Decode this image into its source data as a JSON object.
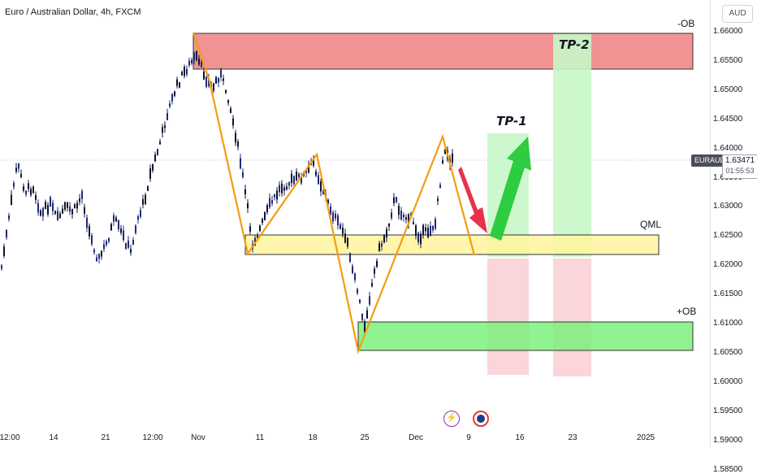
{
  "header": {
    "title": "Euro / Australian Dollar, 4h, FXCM",
    "currency": "AUD"
  },
  "price_axis": {
    "ticks": [
      "1.66000",
      "1.65500",
      "1.65000",
      "1.64500",
      "1.64000",
      "1.63500",
      "1.63000",
      "1.62500",
      "1.62000",
      "1.61500",
      "1.61000",
      "1.60500",
      "1.60000",
      "1.59500",
      "1.59000",
      "1.58500"
    ],
    "current_symbol": "EURAUD",
    "current_price": "1.63471",
    "countdown": "01:55:53"
  },
  "time_axis": {
    "labels": [
      "12:00",
      "14",
      "21",
      "12:00",
      "Nov",
      "11",
      "18",
      "25",
      "Dec",
      "9",
      "16",
      "23",
      "2025"
    ]
  },
  "annotations": {
    "top_zone_label": "-OB",
    "qml_label": "QML",
    "bottom_zone_label": "+OB",
    "tp1_label": "TP-1",
    "tp2_label": "TP-2"
  },
  "events": {
    "lightning_icon": "lightning-icon",
    "flag_icon": "flag-icon"
  },
  "colors": {
    "up_candle": "#1e2a78",
    "down_candle": "#0d1330",
    "supply_zone": "#f08080",
    "demand_zone": "#7df07d",
    "qml_zone": "#fff59d",
    "pattern_line": "#f39c12",
    "target_zone": "#c8f7c8",
    "stop_zone": "#f9d0d5",
    "bullish_arrow": "#2ecc40",
    "bearish_arrow": "#e8324a"
  },
  "chart_data": {
    "type": "candlestick",
    "symbol": "EURAUD",
    "y_range": [
      1.5835,
      1.663
    ],
    "pattern_points": [
      {
        "label": "start",
        "price": 1.66
      },
      {
        "label": "low-1",
        "price": 1.6165
      },
      {
        "label": "high-2",
        "price": 1.6365
      },
      {
        "label": "low-2",
        "price": 1.597
      },
      {
        "label": "high-3",
        "price": 1.6395
      },
      {
        "label": "qml-retest",
        "price": 1.6165
      }
    ],
    "zones": {
      "supply": [
        1.6525,
        1.66
      ],
      "qml": [
        1.6165,
        1.62
      ],
      "demand": [
        1.597,
        1.6025
      ],
      "tp1": [
        1.6165,
        1.64
      ],
      "tp2": [
        1.6165,
        1.66
      ]
    }
  }
}
